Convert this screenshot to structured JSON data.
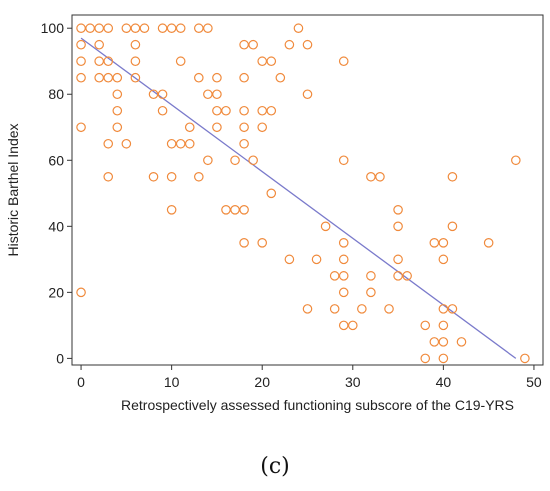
{
  "chart_data": {
    "type": "scatter",
    "title": "",
    "xlabel": "Retrospectively assessed functioning subscore of the C19-YRS",
    "ylabel": "Historic Barthel Index",
    "xlim": [
      -1,
      51
    ],
    "ylim": [
      -2,
      104
    ],
    "xticks": [
      0,
      10,
      20,
      30,
      40,
      50
    ],
    "yticks": [
      0,
      20,
      40,
      60,
      80,
      100
    ],
    "grid": false,
    "legend": "none",
    "marker_color": "#f08a3c",
    "line_color": "#7a7acb",
    "regression_line": {
      "x": [
        0,
        48
      ],
      "y": [
        97,
        0
      ]
    },
    "points": [
      [
        0,
        100
      ],
      [
        1,
        100
      ],
      [
        2,
        100
      ],
      [
        3,
        100
      ],
      [
        5,
        100
      ],
      [
        6,
        100
      ],
      [
        7,
        100
      ],
      [
        9,
        100
      ],
      [
        10,
        100
      ],
      [
        11,
        100
      ],
      [
        13,
        100
      ],
      [
        14,
        100
      ],
      [
        24,
        100
      ],
      [
        0,
        95
      ],
      [
        2,
        95
      ],
      [
        6,
        95
      ],
      [
        18,
        95
      ],
      [
        19,
        95
      ],
      [
        23,
        95
      ],
      [
        25,
        95
      ],
      [
        0,
        90
      ],
      [
        2,
        90
      ],
      [
        3,
        90
      ],
      [
        6,
        90
      ],
      [
        11,
        90
      ],
      [
        20,
        90
      ],
      [
        21,
        90
      ],
      [
        29,
        90
      ],
      [
        0,
        85
      ],
      [
        2,
        85
      ],
      [
        3,
        85
      ],
      [
        4,
        85
      ],
      [
        6,
        85
      ],
      [
        13,
        85
      ],
      [
        15,
        85
      ],
      [
        18,
        85
      ],
      [
        22,
        85
      ],
      [
        4,
        80
      ],
      [
        8,
        80
      ],
      [
        9,
        80
      ],
      [
        14,
        80
      ],
      [
        15,
        80
      ],
      [
        25,
        80
      ],
      [
        4,
        75
      ],
      [
        9,
        75
      ],
      [
        15,
        75
      ],
      [
        16,
        75
      ],
      [
        18,
        75
      ],
      [
        20,
        75
      ],
      [
        21,
        75
      ],
      [
        0,
        70
      ],
      [
        4,
        70
      ],
      [
        12,
        70
      ],
      [
        15,
        70
      ],
      [
        18,
        70
      ],
      [
        20,
        70
      ],
      [
        3,
        65
      ],
      [
        5,
        65
      ],
      [
        10,
        65
      ],
      [
        11,
        65
      ],
      [
        12,
        65
      ],
      [
        18,
        65
      ],
      [
        14,
        60
      ],
      [
        17,
        60
      ],
      [
        19,
        60
      ],
      [
        29,
        60
      ],
      [
        48,
        60
      ],
      [
        3,
        55
      ],
      [
        8,
        55
      ],
      [
        10,
        55
      ],
      [
        13,
        55
      ],
      [
        32,
        55
      ],
      [
        33,
        55
      ],
      [
        41,
        55
      ],
      [
        21,
        50
      ],
      [
        10,
        45
      ],
      [
        16,
        45
      ],
      [
        17,
        45
      ],
      [
        18,
        45
      ],
      [
        35,
        45
      ],
      [
        27,
        40
      ],
      [
        35,
        40
      ],
      [
        41,
        40
      ],
      [
        18,
        35
      ],
      [
        20,
        35
      ],
      [
        29,
        35
      ],
      [
        39,
        35
      ],
      [
        40,
        35
      ],
      [
        45,
        35
      ],
      [
        23,
        30
      ],
      [
        26,
        30
      ],
      [
        29,
        30
      ],
      [
        35,
        30
      ],
      [
        40,
        30
      ],
      [
        28,
        25
      ],
      [
        29,
        25
      ],
      [
        32,
        25
      ],
      [
        35,
        25
      ],
      [
        36,
        25
      ],
      [
        0,
        20
      ],
      [
        29,
        20
      ],
      [
        32,
        20
      ],
      [
        25,
        15
      ],
      [
        28,
        15
      ],
      [
        31,
        15
      ],
      [
        34,
        15
      ],
      [
        40,
        15
      ],
      [
        41,
        15
      ],
      [
        29,
        10
      ],
      [
        30,
        10
      ],
      [
        38,
        10
      ],
      [
        40,
        10
      ],
      [
        39,
        5
      ],
      [
        40,
        5
      ],
      [
        42,
        5
      ],
      [
        38,
        0
      ],
      [
        40,
        0
      ],
      [
        49,
        0
      ]
    ]
  },
  "caption": "(c)"
}
